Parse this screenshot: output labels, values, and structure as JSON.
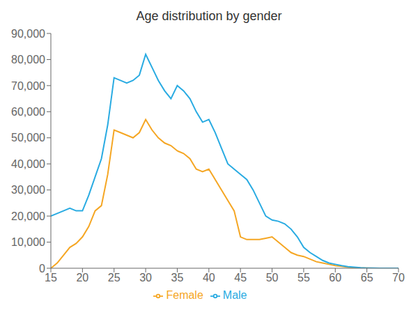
{
  "chart_data": {
    "type": "line",
    "title": "Age distribution by gender",
    "x": [
      15,
      16,
      17,
      18,
      19,
      20,
      21,
      22,
      23,
      24,
      25,
      26,
      27,
      28,
      29,
      30,
      31,
      32,
      33,
      34,
      35,
      36,
      37,
      38,
      39,
      40,
      41,
      42,
      43,
      44,
      45,
      46,
      47,
      48,
      49,
      50,
      51,
      52,
      53,
      54,
      55,
      56,
      57,
      58,
      59,
      60,
      61,
      62,
      63,
      64,
      65,
      66,
      67,
      68,
      69,
      70
    ],
    "series": [
      {
        "name": "Female",
        "color": "#f5a623",
        "values": [
          0,
          2000,
          5000,
          8000,
          9500,
          12000,
          16000,
          22000,
          24000,
          36000,
          53000,
          52000,
          51000,
          50000,
          52000,
          57000,
          53000,
          50000,
          48000,
          47000,
          45000,
          44000,
          42000,
          38000,
          37000,
          38000,
          34000,
          30000,
          26000,
          22000,
          12000,
          11000,
          11000,
          11000,
          11500,
          12000,
          10000,
          8000,
          6000,
          5000,
          4500,
          3500,
          2500,
          2000,
          1500,
          1000,
          700,
          400,
          200,
          100,
          50,
          20,
          10,
          5,
          2,
          0
        ]
      },
      {
        "name": "Male",
        "color": "#29abe2",
        "values": [
          20000,
          21000,
          22000,
          23000,
          22000,
          22000,
          28000,
          35000,
          42000,
          55000,
          73000,
          72000,
          71000,
          72000,
          74000,
          82000,
          77000,
          72000,
          68000,
          65000,
          70000,
          68000,
          65000,
          60000,
          56000,
          57000,
          52000,
          46000,
          40000,
          38000,
          36000,
          34000,
          30000,
          25000,
          20000,
          18500,
          18000,
          17000,
          15000,
          12000,
          8000,
          6000,
          4500,
          3000,
          2000,
          1500,
          1000,
          600,
          400,
          200,
          100,
          50,
          20,
          10,
          5,
          0
        ]
      }
    ],
    "xlim": [
      15,
      70
    ],
    "ylim": [
      0,
      90000
    ],
    "xticks": [
      15,
      20,
      25,
      30,
      35,
      40,
      45,
      50,
      55,
      60,
      65,
      70
    ],
    "yticks": [
      0,
      {
        "value": 10000,
        "label": "10,000"
      },
      {
        "value": 20000,
        "label": "20,000"
      },
      {
        "value": 30000,
        "label": "30,000"
      },
      {
        "value": 40000,
        "label": "40,000"
      },
      {
        "value": 50000,
        "label": "50,000"
      },
      {
        "value": 60000,
        "label": "60,000"
      },
      {
        "value": 70000,
        "label": "70,000"
      },
      {
        "value": 80000,
        "label": "80,000"
      },
      {
        "value": 90000,
        "label": "90,000"
      }
    ],
    "grid": false,
    "legend": "bottom"
  }
}
